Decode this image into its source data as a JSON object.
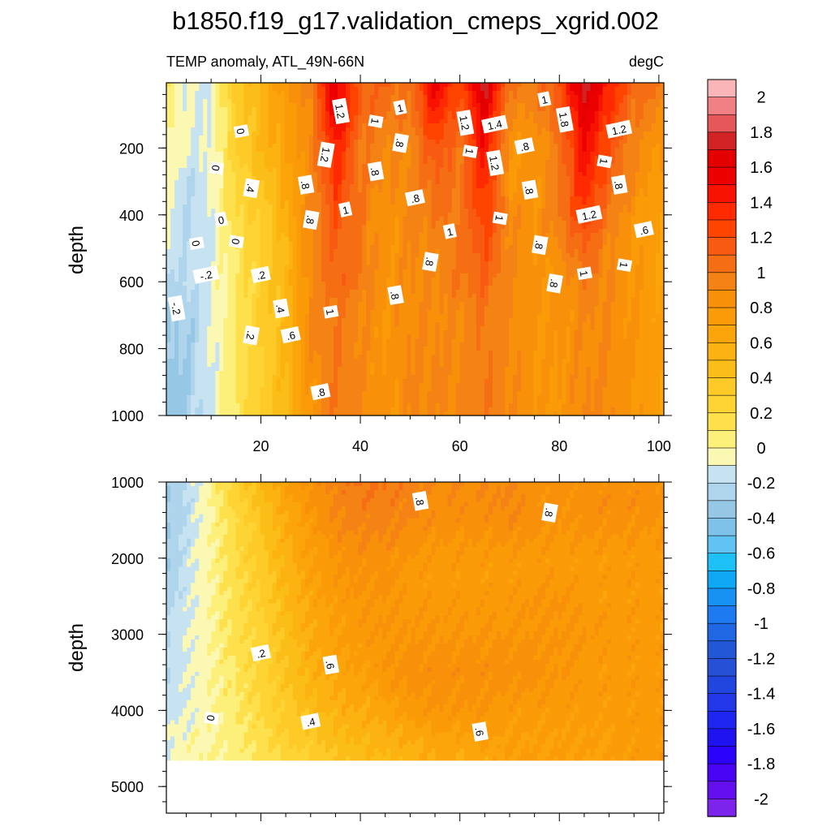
{
  "title": "b1850.f19_g17.validation_cmeps_xgrid.002",
  "colors": {
    "axis": "#000000",
    "missing": "#ffffff"
  },
  "chart_data": [
    {
      "type": "heatmap",
      "subtitle_left": "TEMP anomaly, ATL_49N-66N",
      "subtitle_right": "degC",
      "xlabel": "",
      "ylabel": "depth",
      "xlim": [
        1,
        101
      ],
      "ylim": [
        1000,
        5
      ],
      "yreversed": true,
      "xticks": [
        20,
        40,
        60,
        80,
        100
      ],
      "yticks": [
        200,
        400,
        600,
        800,
        1000
      ],
      "x": [
        1,
        5,
        10,
        15,
        20,
        25,
        30,
        35,
        40,
        45,
        50,
        55,
        60,
        65,
        70,
        75,
        80,
        85,
        90,
        95,
        101
      ],
      "depth": [
        5,
        100,
        200,
        300,
        400,
        500,
        600,
        700,
        800,
        900,
        1000
      ],
      "values": [
        [
          0.1,
          -0.1,
          -0.1,
          0.4,
          0.5,
          0.8,
          1.0,
          1.6,
          1.1,
          1.1,
          1.0,
          1.6,
          1.2,
          1.8,
          1.0,
          1.0,
          1.2,
          1.8,
          1.4,
          1.1,
          1.0
        ],
        [
          0.1,
          -0.1,
          -0.1,
          0.3,
          0.5,
          0.7,
          0.9,
          1.6,
          1.1,
          1.0,
          1.0,
          1.4,
          1.1,
          1.6,
          0.9,
          0.9,
          1.1,
          1.6,
          1.3,
          1.0,
          0.9
        ],
        [
          0.0,
          -0.1,
          -0.1,
          0.3,
          0.5,
          0.7,
          0.9,
          1.4,
          1.0,
          0.9,
          0.9,
          1.2,
          1.0,
          1.5,
          0.8,
          0.8,
          1.0,
          1.5,
          1.2,
          0.9,
          0.8
        ],
        [
          0.0,
          -0.2,
          -0.1,
          0.2,
          0.4,
          0.6,
          0.9,
          1.3,
          1.0,
          0.9,
          0.9,
          1.1,
          1.0,
          1.4,
          0.8,
          0.8,
          1.0,
          1.4,
          1.1,
          0.9,
          0.7
        ],
        [
          -0.1,
          -0.2,
          -0.1,
          0.2,
          0.3,
          0.6,
          0.9,
          1.2,
          1.0,
          0.8,
          0.9,
          1.0,
          1.0,
          1.3,
          0.9,
          0.8,
          1.0,
          1.3,
          1.0,
          0.8,
          0.7
        ],
        [
          -0.1,
          -0.2,
          -0.1,
          0.1,
          0.3,
          0.5,
          0.9,
          1.1,
          1.0,
          0.8,
          0.9,
          0.9,
          1.0,
          1.2,
          0.9,
          0.8,
          0.9,
          1.1,
          0.9,
          0.8,
          0.7
        ],
        [
          -0.2,
          -0.2,
          -0.1,
          0.1,
          0.3,
          0.5,
          0.9,
          1.1,
          1.0,
          0.8,
          0.9,
          0.9,
          1.0,
          1.1,
          0.9,
          0.8,
          0.8,
          1.0,
          0.9,
          0.8,
          0.7
        ],
        [
          -0.3,
          -0.3,
          -0.1,
          0.1,
          0.3,
          0.5,
          0.9,
          1.0,
          0.9,
          0.8,
          0.9,
          0.9,
          0.9,
          1.0,
          0.9,
          0.8,
          0.8,
          0.9,
          0.9,
          0.8,
          0.7
        ],
        [
          -0.3,
          -0.3,
          -0.1,
          0.1,
          0.3,
          0.5,
          0.9,
          1.0,
          0.9,
          0.8,
          0.9,
          0.9,
          0.9,
          1.0,
          0.9,
          0.8,
          0.8,
          0.9,
          0.9,
          0.8,
          0.7
        ],
        [
          -0.4,
          -0.3,
          -0.1,
          0.1,
          0.3,
          0.5,
          0.8,
          1.0,
          0.9,
          0.8,
          0.9,
          0.9,
          0.9,
          1.0,
          0.9,
          0.8,
          0.8,
          0.9,
          0.9,
          0.8,
          0.7
        ],
        [
          -0.4,
          -0.3,
          -0.1,
          0.1,
          0.3,
          0.5,
          0.8,
          1.0,
          0.9,
          0.8,
          0.9,
          0.9,
          0.9,
          1.0,
          0.9,
          0.8,
          0.8,
          0.9,
          0.9,
          0.8,
          0.7
        ]
      ],
      "contour_labels": [
        {
          "x": 16,
          "depth": 150,
          "text": "0"
        },
        {
          "x": 11,
          "depth": 260,
          "text": "0"
        },
        {
          "x": 12,
          "depth": 415,
          "text": "0"
        },
        {
          "x": 7,
          "depth": 485,
          "text": "0"
        },
        {
          "x": 15,
          "depth": 480,
          "text": "0"
        },
        {
          "x": 9,
          "depth": 580,
          "text": "-.2"
        },
        {
          "x": 3,
          "depth": 680,
          "text": "-.2"
        },
        {
          "x": 18,
          "depth": 320,
          "text": ".4"
        },
        {
          "x": 20,
          "depth": 580,
          "text": ".2"
        },
        {
          "x": 24,
          "depth": 680,
          "text": ".4"
        },
        {
          "x": 18,
          "depth": 760,
          "text": ".2"
        },
        {
          "x": 26,
          "depth": 760,
          "text": ".6"
        },
        {
          "x": 29,
          "depth": 310,
          "text": ".8"
        },
        {
          "x": 30,
          "depth": 415,
          "text": ".8"
        },
        {
          "x": 32,
          "depth": 930,
          "text": ".8"
        },
        {
          "x": 36,
          "depth": 90,
          "text": "1.2"
        },
        {
          "x": 33,
          "depth": 220,
          "text": "1.2"
        },
        {
          "x": 37,
          "depth": 385,
          "text": "1"
        },
        {
          "x": 34,
          "depth": 690,
          "text": "1"
        },
        {
          "x": 43,
          "depth": 120,
          "text": "1"
        },
        {
          "x": 48,
          "depth": 80,
          "text": "1"
        },
        {
          "x": 43,
          "depth": 270,
          "text": ".8"
        },
        {
          "x": 48,
          "depth": 185,
          "text": ".8"
        },
        {
          "x": 51,
          "depth": 350,
          "text": ".8"
        },
        {
          "x": 47,
          "depth": 640,
          "text": ".8"
        },
        {
          "x": 54,
          "depth": 540,
          "text": ".8"
        },
        {
          "x": 58,
          "depth": 450,
          "text": "1"
        },
        {
          "x": 61,
          "depth": 125,
          "text": "1.2"
        },
        {
          "x": 62,
          "depth": 210,
          "text": "1"
        },
        {
          "x": 67,
          "depth": 130,
          "text": "1.4"
        },
        {
          "x": 67,
          "depth": 245,
          "text": "1.2"
        },
        {
          "x": 68,
          "depth": 410,
          "text": "1"
        },
        {
          "x": 73,
          "depth": 195,
          "text": ".8"
        },
        {
          "x": 74,
          "depth": 325,
          "text": ".8"
        },
        {
          "x": 76,
          "depth": 490,
          "text": ".8"
        },
        {
          "x": 77,
          "depth": 55,
          "text": "1"
        },
        {
          "x": 81,
          "depth": 115,
          "text": "1.8"
        },
        {
          "x": 79,
          "depth": 605,
          "text": ".8"
        },
        {
          "x": 86,
          "depth": 400,
          "text": "1.2"
        },
        {
          "x": 85,
          "depth": 575,
          "text": "1"
        },
        {
          "x": 89,
          "depth": 240,
          "text": "1"
        },
        {
          "x": 92,
          "depth": 145,
          "text": "1.2"
        },
        {
          "x": 92,
          "depth": 310,
          "text": ".8"
        },
        {
          "x": 93,
          "depth": 550,
          "text": "1"
        },
        {
          "x": 97,
          "depth": 445,
          "text": ".6"
        }
      ]
    },
    {
      "type": "heatmap",
      "xlabel": "",
      "ylabel": "depth",
      "xlim": [
        1,
        101
      ],
      "ylim": [
        5350,
        1000
      ],
      "yreversed": true,
      "xticks": [
        20,
        40,
        60,
        80,
        100
      ],
      "yticks": [
        1000,
        2000,
        3000,
        4000,
        5000
      ],
      "x": [
        1,
        5,
        10,
        15,
        20,
        25,
        30,
        35,
        40,
        45,
        50,
        55,
        60,
        65,
        70,
        75,
        80,
        85,
        90,
        95,
        101
      ],
      "depth": [
        1000,
        1500,
        2000,
        2500,
        3000,
        3500,
        4000,
        4400,
        4640
      ],
      "values": [
        [
          -0.3,
          -0.2,
          0.0,
          0.3,
          0.5,
          0.7,
          0.85,
          0.95,
          1.0,
          1.0,
          0.95,
          0.9,
          0.9,
          0.9,
          0.9,
          0.85,
          0.85,
          0.85,
          0.85,
          0.85,
          0.85
        ],
        [
          -0.3,
          -0.2,
          0.0,
          0.2,
          0.4,
          0.6,
          0.75,
          0.9,
          0.95,
          0.95,
          0.9,
          0.85,
          0.85,
          0.85,
          0.9,
          0.85,
          0.8,
          0.85,
          0.85,
          0.85,
          0.8
        ],
        [
          -0.3,
          -0.15,
          0.0,
          0.2,
          0.35,
          0.55,
          0.7,
          0.8,
          0.85,
          0.85,
          0.8,
          0.75,
          0.75,
          0.75,
          0.75,
          0.75,
          0.75,
          0.75,
          0.75,
          0.75,
          0.75
        ],
        [
          -0.25,
          -0.15,
          0.0,
          0.15,
          0.3,
          0.5,
          0.65,
          0.75,
          0.8,
          0.8,
          0.75,
          0.75,
          0.75,
          0.75,
          0.75,
          0.8,
          0.8,
          0.75,
          0.75,
          0.75,
          0.75
        ],
        [
          -0.2,
          -0.1,
          0.0,
          0.15,
          0.25,
          0.45,
          0.6,
          0.7,
          0.75,
          0.8,
          0.8,
          0.8,
          0.8,
          0.8,
          0.8,
          0.8,
          0.8,
          0.8,
          0.75,
          0.75,
          0.75
        ],
        [
          -0.2,
          -0.1,
          0.0,
          0.1,
          0.25,
          0.4,
          0.55,
          0.65,
          0.7,
          0.8,
          0.85,
          0.85,
          0.85,
          0.85,
          0.85,
          0.85,
          0.8,
          0.75,
          0.75,
          0.75,
          0.75
        ],
        [
          -0.15,
          -0.1,
          0.0,
          0.1,
          0.2,
          0.35,
          0.45,
          0.55,
          0.6,
          0.65,
          0.75,
          0.8,
          0.8,
          0.8,
          0.75,
          0.75,
          0.75,
          0.75,
          0.75,
          0.75,
          0.75
        ],
        [
          -0.1,
          -0.05,
          0.0,
          0.05,
          0.15,
          0.3,
          0.35,
          0.45,
          0.5,
          0.55,
          0.6,
          0.65,
          0.65,
          0.7,
          0.7,
          0.7,
          0.7,
          0.7,
          0.7,
          0.75,
          0.75
        ],
        [
          -0.1,
          -0.05,
          0.0,
          0.05,
          0.1,
          0.2,
          0.3,
          0.4,
          0.45,
          0.5,
          0.55,
          0.6,
          0.6,
          0.65,
          0.7,
          0.7,
          0.7,
          0.7,
          0.7,
          0.75,
          0.75
        ]
      ],
      "missing_below_depth": 4640,
      "contour_labels": [
        {
          "x": 52,
          "depth": 1250,
          "text": ".8"
        },
        {
          "x": 78,
          "depth": 1400,
          "text": ".8"
        },
        {
          "x": 20,
          "depth": 3250,
          "text": ".2"
        },
        {
          "x": 34,
          "depth": 3400,
          "text": ".6"
        },
        {
          "x": 10,
          "depth": 4100,
          "text": "0"
        },
        {
          "x": 30,
          "depth": 4150,
          "text": ".4"
        },
        {
          "x": 64,
          "depth": 4280,
          "text": ".6"
        }
      ]
    }
  ],
  "colorbar": {
    "labels": [
      "2",
      "1.8",
      "1.6",
      "1.4",
      "1.2",
      "1",
      "0.8",
      "0.6",
      "0.4",
      "0.2",
      "0",
      "-0.2",
      "-0.4",
      "-0.6",
      "-0.8",
      "-1",
      "-1.2",
      "-1.4",
      "-1.6",
      "-1.8",
      "-2"
    ],
    "levels": [
      2.2,
      2.0,
      1.9,
      1.8,
      1.7,
      1.6,
      1.5,
      1.4,
      1.3,
      1.2,
      1.1,
      1.0,
      0.9,
      0.8,
      0.7,
      0.6,
      0.5,
      0.4,
      0.3,
      0.2,
      0.1,
      0.0,
      -0.1,
      -0.2,
      -0.3,
      -0.4,
      -0.5,
      -0.6,
      -0.7,
      -0.8,
      -0.9,
      -1.0,
      -1.1,
      -1.2,
      -1.3,
      -1.4,
      -1.5,
      -1.6,
      -1.7,
      -1.8,
      -1.9,
      -2.0,
      -2.2
    ],
    "colors": [
      "#f9b5b7",
      "#f08083",
      "#e6575a",
      "#d12323",
      "#e50000",
      "#ed0000",
      "#f81200",
      "#ff2a00",
      "#ff4400",
      "#f95a12",
      "#f66e14",
      "#f58215",
      "#f8900a",
      "#fa9b07",
      "#fca50b",
      "#fcb210",
      "#fbbe18",
      "#fdca28",
      "#fdd433",
      "#fee04d",
      "#fcf07a",
      "#fbf8b4",
      "#c7e3f2",
      "#aed5eb",
      "#96c8e6",
      "#7ec2e9",
      "#61c3f3",
      "#1dc1f8",
      "#0fa8f5",
      "#1791f2",
      "#1d7af0",
      "#2067e3",
      "#2257d7",
      "#2650d5",
      "#2146e0",
      "#2238e8",
      "#1e26ef",
      "#1f14f1",
      "#2b03fb",
      "#4802f4",
      "#6410ee",
      "#7d24ec"
    ]
  }
}
